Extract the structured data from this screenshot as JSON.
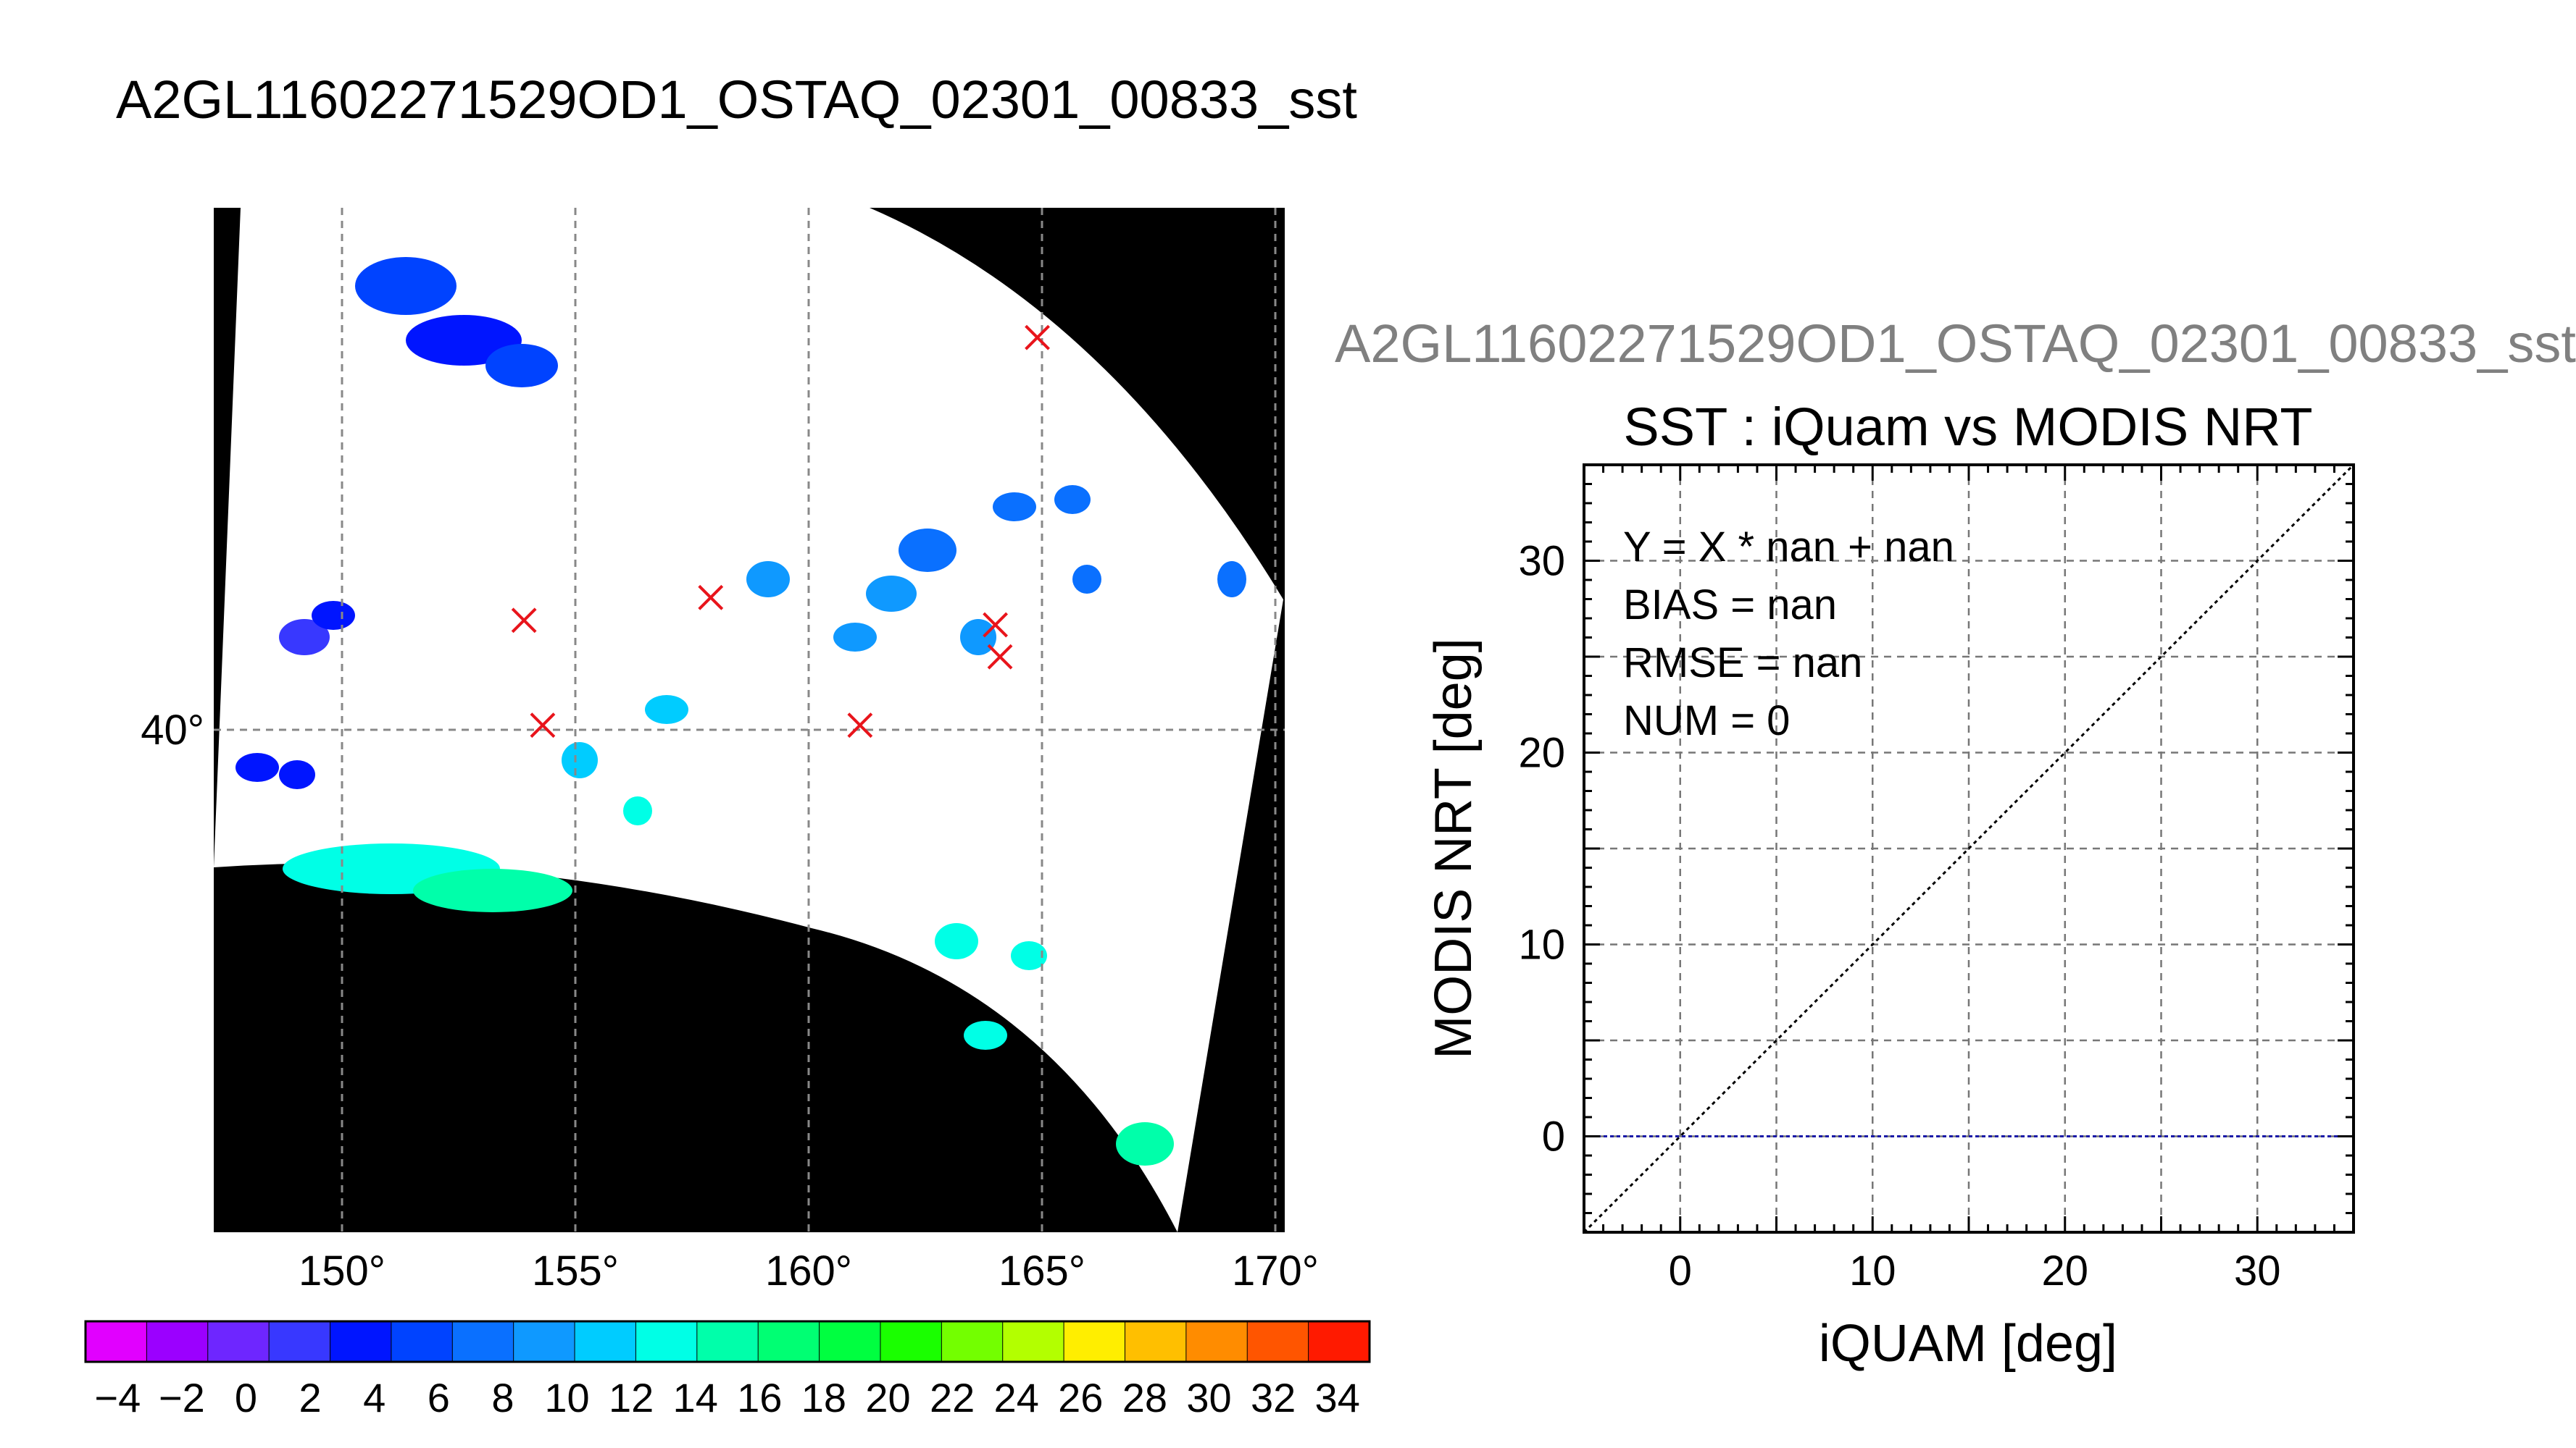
{
  "page_title": "A2GL11602271529OD1_OSTAQ_02301_00833_sst",
  "overlay_title": "A2GL11602271529OD1_OSTAQ_02301_00833_sst",
  "map": {
    "lon_ticks": [
      150,
      155,
      160,
      165,
      170
    ],
    "lon_labels": [
      "150°",
      "155°",
      "160°",
      "165°",
      "170°"
    ],
    "lat_ticks": [
      40
    ],
    "lat_labels": [
      "40°"
    ],
    "no_data_color": "#000000",
    "swath_color": "#ffffff",
    "matchup_marker_color": "#e8141b",
    "matchups": [
      {
        "lon": 164.9,
        "lat": 48.6
      },
      {
        "lon": 153.9,
        "lat": 42.4
      },
      {
        "lon": 157.9,
        "lat": 42.9
      },
      {
        "lon": 164.0,
        "lat": 42.3
      },
      {
        "lon": 164.1,
        "lat": 41.6
      },
      {
        "lon": 154.3,
        "lat": 40.1
      },
      {
        "lon": 161.1,
        "lat": 40.1
      }
    ]
  },
  "colorbar": {
    "min": -5,
    "max": 35,
    "tick_labels": [
      "−4",
      "−2",
      "0",
      "2",
      "4",
      "6",
      "8",
      "10",
      "12",
      "14",
      "16",
      "18",
      "20",
      "22",
      "24",
      "26",
      "28",
      "30",
      "32",
      "34"
    ],
    "colors": [
      "#e100ff",
      "#9b00ff",
      "#6e26ff",
      "#3838ff",
      "#0015ff",
      "#0043ff",
      "#0a70ff",
      "#0f99ff",
      "#00ccff",
      "#00ffe6",
      "#00ffaa",
      "#00ff73",
      "#00ff40",
      "#1aff00",
      "#73ff00",
      "#b3ff00",
      "#ffee00",
      "#ffbf00",
      "#ff8c00",
      "#ff5500",
      "#ff1a00"
    ]
  },
  "chart_data": {
    "type": "scatter",
    "title": "SST : iQuam vs MODIS NRT",
    "xlabel": "iQUAM [deg]",
    "ylabel": "MODIS NRT [deg]",
    "xlim": [
      -5,
      35
    ],
    "ylim": [
      -5,
      35
    ],
    "x_ticks": [
      0,
      10,
      20,
      30
    ],
    "y_ticks": [
      0,
      10,
      20,
      30
    ],
    "grid": true,
    "series": [],
    "reference_lines": [
      {
        "kind": "one-to-one",
        "color": "#000000",
        "style": "dotted"
      },
      {
        "kind": "horizontal",
        "y": 0,
        "color": "#1a1aa8",
        "style": "dotted"
      }
    ],
    "annotations": [
      "Y = X * nan + nan",
      "BIAS = nan",
      "RMSE = nan",
      "NUM = 0"
    ]
  }
}
